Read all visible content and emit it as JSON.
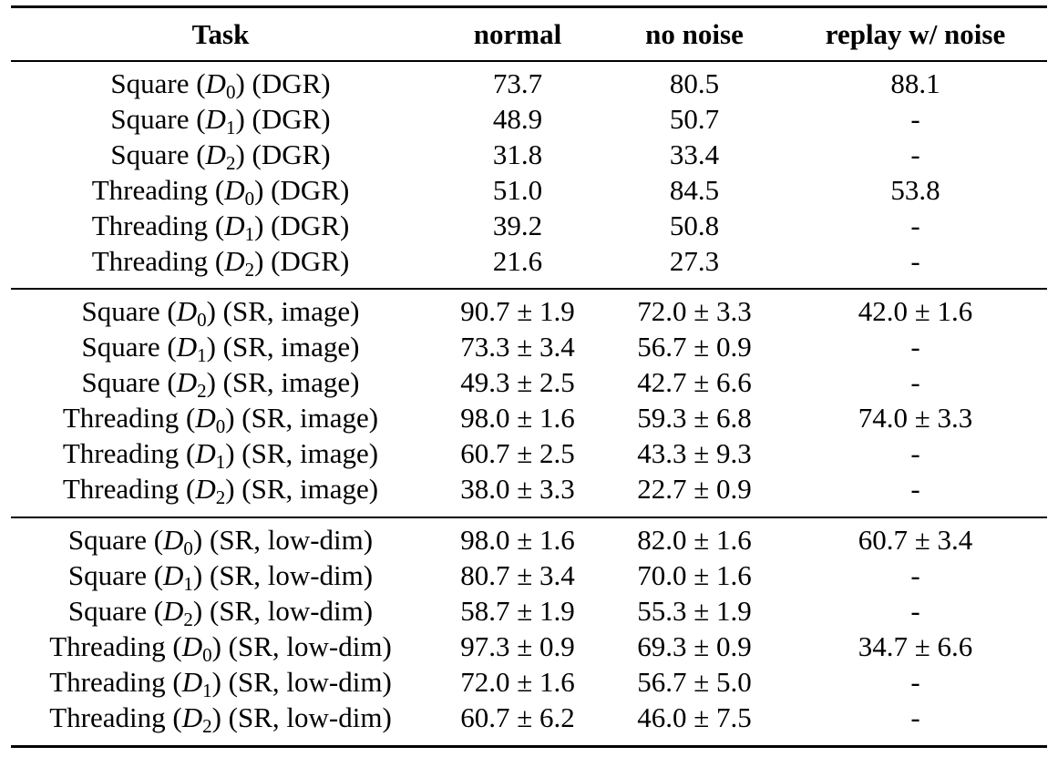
{
  "table": {
    "headers": [
      "Task",
      "normal",
      "no noise",
      "replay w/ noise"
    ],
    "groups": [
      {
        "rows": [
          {
            "task_prefix": "Square (",
            "d": "D",
            "sub": "0",
            "task_suffix": ") (DGR)",
            "normal": "73.7",
            "no_noise": "80.5",
            "replay": "88.1"
          },
          {
            "task_prefix": "Square (",
            "d": "D",
            "sub": "1",
            "task_suffix": ") (DGR)",
            "normal": "48.9",
            "no_noise": "50.7",
            "replay": "-"
          },
          {
            "task_prefix": "Square (",
            "d": "D",
            "sub": "2",
            "task_suffix": ") (DGR)",
            "normal": "31.8",
            "no_noise": "33.4",
            "replay": "-"
          },
          {
            "task_prefix": "Threading (",
            "d": "D",
            "sub": "0",
            "task_suffix": ") (DGR)",
            "normal": "51.0",
            "no_noise": "84.5",
            "replay": "53.8"
          },
          {
            "task_prefix": "Threading (",
            "d": "D",
            "sub": "1",
            "task_suffix": ") (DGR)",
            "normal": "39.2",
            "no_noise": "50.8",
            "replay": "-"
          },
          {
            "task_prefix": "Threading (",
            "d": "D",
            "sub": "2",
            "task_suffix": ") (DGR)",
            "normal": "21.6",
            "no_noise": "27.3",
            "replay": "-"
          }
        ]
      },
      {
        "rows": [
          {
            "task_prefix": "Square (",
            "d": "D",
            "sub": "0",
            "task_suffix": ") (SR, image)",
            "normal": "90.7 ± 1.9",
            "no_noise": "72.0 ± 3.3",
            "replay": "42.0 ± 1.6"
          },
          {
            "task_prefix": "Square (",
            "d": "D",
            "sub": "1",
            "task_suffix": ") (SR, image)",
            "normal": "73.3 ± 3.4",
            "no_noise": "56.7 ± 0.9",
            "replay": "-"
          },
          {
            "task_prefix": "Square (",
            "d": "D",
            "sub": "2",
            "task_suffix": ") (SR, image)",
            "normal": "49.3 ± 2.5",
            "no_noise": "42.7 ± 6.6",
            "replay": "-"
          },
          {
            "task_prefix": "Threading (",
            "d": "D",
            "sub": "0",
            "task_suffix": ") (SR, image)",
            "normal": "98.0 ± 1.6",
            "no_noise": "59.3 ± 6.8",
            "replay": "74.0 ± 3.3"
          },
          {
            "task_prefix": "Threading (",
            "d": "D",
            "sub": "1",
            "task_suffix": ") (SR, image)",
            "normal": "60.7 ± 2.5",
            "no_noise": "43.3 ± 9.3",
            "replay": "-"
          },
          {
            "task_prefix": "Threading (",
            "d": "D",
            "sub": "2",
            "task_suffix": ") (SR, image)",
            "normal": "38.0 ± 3.3",
            "no_noise": "22.7 ± 0.9",
            "replay": "-"
          }
        ]
      },
      {
        "rows": [
          {
            "task_prefix": "Square (",
            "d": "D",
            "sub": "0",
            "task_suffix": ") (SR, low-dim)",
            "normal": "98.0 ± 1.6",
            "no_noise": "82.0 ± 1.6",
            "replay": "60.7 ± 3.4"
          },
          {
            "task_prefix": "Square (",
            "d": "D",
            "sub": "1",
            "task_suffix": ") (SR, low-dim)",
            "normal": "80.7 ± 3.4",
            "no_noise": "70.0 ± 1.6",
            "replay": "-"
          },
          {
            "task_prefix": "Square (",
            "d": "D",
            "sub": "2",
            "task_suffix": ") (SR, low-dim)",
            "normal": "58.7 ± 1.9",
            "no_noise": "55.3 ± 1.9",
            "replay": "-"
          },
          {
            "task_prefix": "Threading (",
            "d": "D",
            "sub": "0",
            "task_suffix": ") (SR, low-dim)",
            "normal": "97.3 ± 0.9",
            "no_noise": "69.3 ± 0.9",
            "replay": "34.7 ± 6.6"
          },
          {
            "task_prefix": "Threading (",
            "d": "D",
            "sub": "1",
            "task_suffix": ") (SR, low-dim)",
            "normal": "72.0 ± 1.6",
            "no_noise": "56.7 ± 5.0",
            "replay": "-"
          },
          {
            "task_prefix": "Threading (",
            "d": "D",
            "sub": "2",
            "task_suffix": ") (SR, low-dim)",
            "normal": "60.7 ± 6.2",
            "no_noise": "46.0 ± 7.5",
            "replay": "-"
          }
        ]
      }
    ]
  }
}
